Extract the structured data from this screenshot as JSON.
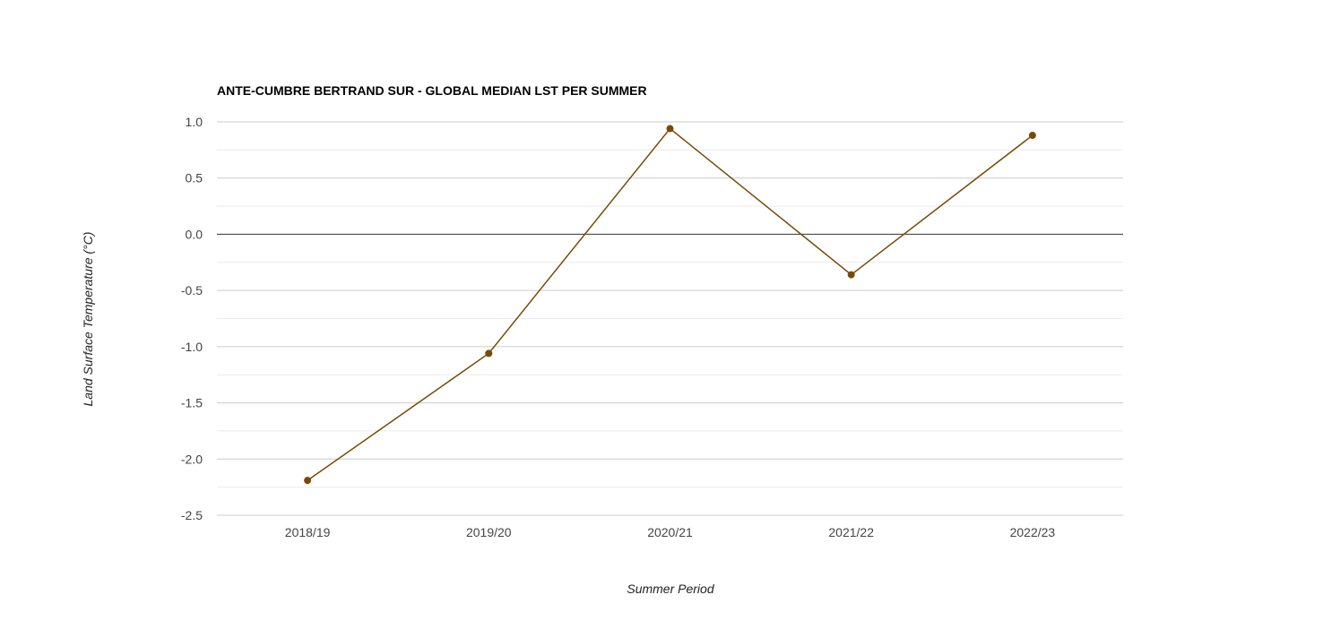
{
  "chart_data": {
    "type": "line",
    "title": "ANTE-CUMBRE BERTRAND SUR - GLOBAL MEDIAN LST PER SUMMER",
    "xlabel": "Summer Period",
    "ylabel": "Land Surface Temperature (°C)",
    "categories": [
      "2018/19",
      "2019/20",
      "2020/21",
      "2021/22",
      "2022/23"
    ],
    "series": [
      {
        "values": [
          -2.19,
          -1.06,
          0.94,
          -0.36,
          0.88
        ],
        "color": "#7a4a05"
      }
    ],
    "ylim": [
      -2.5,
      1.0
    ],
    "yticks": [
      "1.0",
      "0.5",
      "0.0",
      "-0.5",
      "-1.0",
      "-1.5",
      "-2.0",
      "-2.5"
    ],
    "grid": true,
    "legend": "none",
    "colors": {
      "grid_major": "#cccccc",
      "grid_minor": "#ebebeb",
      "baseline": "#333333"
    }
  }
}
